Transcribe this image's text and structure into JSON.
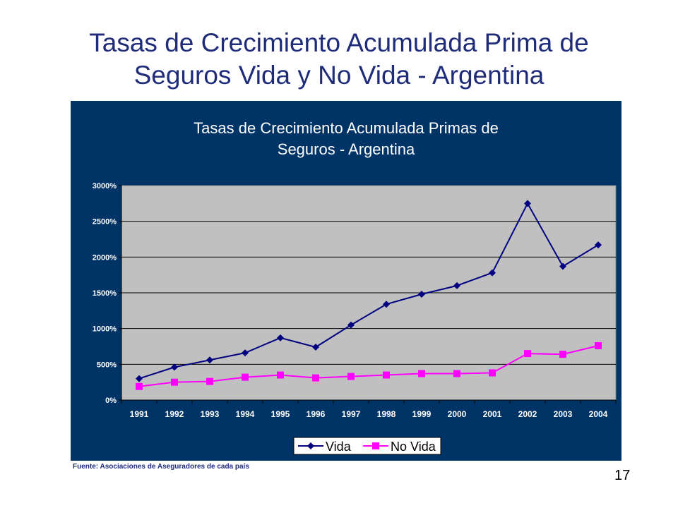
{
  "slide": {
    "title_lines": [
      "Tasas de Crecimiento Acumulada Prima de",
      "Seguros Vida y No Vida - Argentina"
    ],
    "source": "Fuente: Asociaciones de Aseguradores de cada país",
    "page_number": "17"
  },
  "colors": {
    "panel_bg": "#003366",
    "plot_bg": "#c0c0c0",
    "vida": "#000080",
    "no_vida": "#ff00ff",
    "title_text": "#1f2c7a"
  },
  "chart_data": {
    "type": "line",
    "title_lines": [
      "Tasas de Crecimiento Acumulada  Primas de",
      "Seguros - Argentina"
    ],
    "xlabel": "",
    "ylabel": "",
    "categories": [
      "1991",
      "1992",
      "1993",
      "1994",
      "1995",
      "1996",
      "1997",
      "1998",
      "1999",
      "2000",
      "2001",
      "2002",
      "2003",
      "2004"
    ],
    "ylim": [
      0,
      3000
    ],
    "yticks": [
      0,
      500,
      1000,
      1500,
      2000,
      2500,
      3000
    ],
    "ytick_labels": [
      "0%",
      "500%",
      "1000%",
      "1500%",
      "2000%",
      "2500%",
      "3000%"
    ],
    "grid": true,
    "legend_position": "bottom",
    "series": [
      {
        "name": "Vida",
        "marker": "diamond",
        "values": [
          300,
          460,
          560,
          660,
          870,
          740,
          1050,
          1340,
          1480,
          1600,
          1780,
          2750,
          1870,
          2170
        ]
      },
      {
        "name": "No Vida",
        "marker": "square",
        "values": [
          190,
          250,
          260,
          320,
          350,
          310,
          330,
          350,
          370,
          370,
          380,
          650,
          640,
          760
        ]
      }
    ]
  }
}
